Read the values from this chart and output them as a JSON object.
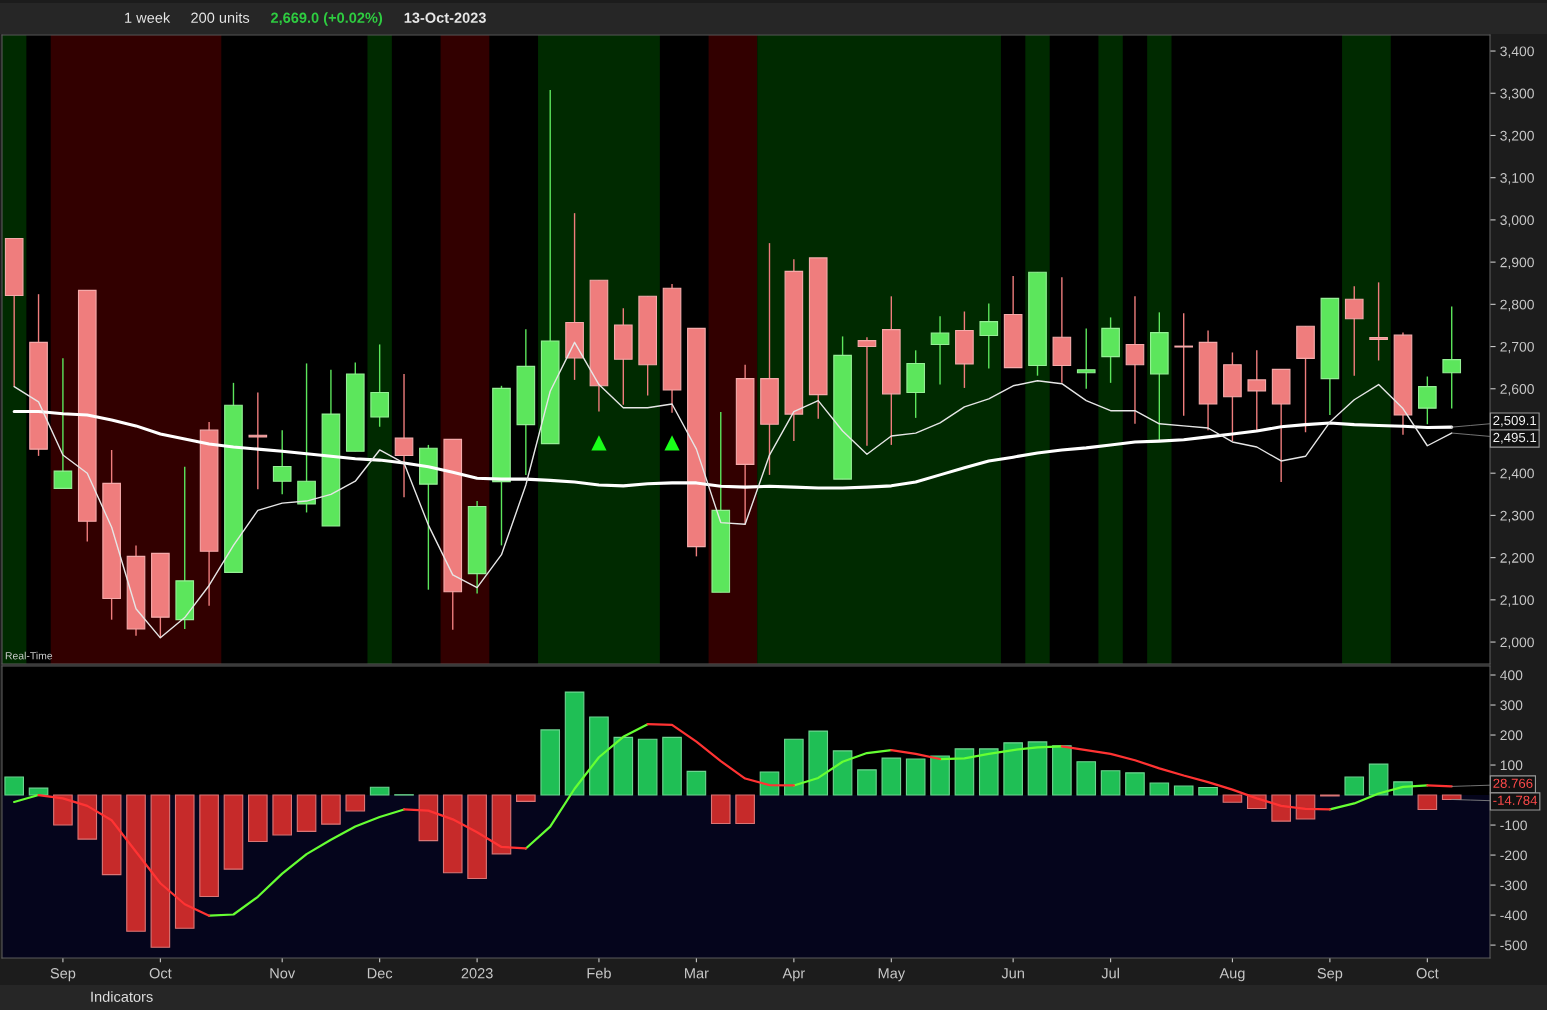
{
  "chart_data": [
    {
      "type": "candlestick",
      "title": "2,669.0 (+0.02%)",
      "subtitle": "13-Oct-2023",
      "x": [
        "2022-08-22",
        "2022-08-29",
        "2022-09-05",
        "2022-09-12",
        "2022-09-19",
        "2022-09-26",
        "2022-10-03",
        "2022-10-10",
        "2022-10-17",
        "2022-10-24",
        "2022-10-31",
        "2022-11-07",
        "2022-11-14",
        "2022-11-21",
        "2022-11-28",
        "2022-12-05",
        "2022-12-12",
        "2022-12-19",
        "2022-12-26",
        "2023-01-02",
        "2023-01-09",
        "2023-01-16",
        "2023-01-23",
        "2023-01-30",
        "2023-02-06",
        "2023-02-13",
        "2023-02-20",
        "2023-02-27",
        "2023-03-06",
        "2023-03-13",
        "2023-03-20",
        "2023-03-27",
        "2023-04-03",
        "2023-04-10",
        "2023-04-17",
        "2023-04-24",
        "2023-05-01",
        "2023-05-08",
        "2023-05-15",
        "2023-05-22",
        "2023-05-29",
        "2023-06-05",
        "2023-06-12",
        "2023-06-19",
        "2023-06-26",
        "2023-07-03",
        "2023-07-10",
        "2023-07-17",
        "2023-07-24",
        "2023-07-31",
        "2023-08-07",
        "2023-08-14",
        "2023-08-21",
        "2023-08-28",
        "2023-09-04",
        "2023-09-11",
        "2023-09-18",
        "2023-09-25",
        "2023-10-02",
        "2023-10-09"
      ],
      "ohlc": [
        [
          2956,
          2956,
          2605,
          2821
        ],
        [
          2710,
          2824,
          2441,
          2457
        ],
        [
          2364,
          2672,
          2364,
          2405
        ],
        [
          2833,
          2833,
          2238,
          2286
        ],
        [
          2376,
          2455,
          2053,
          2103
        ],
        [
          2203,
          2229,
          2015,
          2031
        ],
        [
          2210,
          2210,
          2010,
          2059
        ],
        [
          2053,
          2415,
          2031,
          2145
        ],
        [
          2502,
          2521,
          2086,
          2215
        ],
        [
          2165,
          2614,
          2165,
          2561
        ],
        [
          2490,
          2591,
          2362,
          2486
        ],
        [
          2381,
          2502,
          2350,
          2416
        ],
        [
          2327,
          2660,
          2307,
          2381
        ],
        [
          2275,
          2645,
          2275,
          2540
        ],
        [
          2452,
          2662,
          2452,
          2635
        ],
        [
          2533,
          2705,
          2510,
          2591
        ],
        [
          2483,
          2635,
          2343,
          2442
        ],
        [
          2374,
          2467,
          2124,
          2459
        ],
        [
          2480,
          2480,
          2029,
          2119
        ],
        [
          2162,
          2334,
          2115,
          2321
        ],
        [
          2380,
          2607,
          2229,
          2601
        ],
        [
          2515,
          2741,
          2396,
          2653
        ],
        [
          2470,
          3308,
          2470,
          2713
        ],
        [
          2757,
          3016,
          2621,
          2673
        ],
        [
          2857,
          2857,
          2546,
          2607
        ],
        [
          2751,
          2791,
          2562,
          2670
        ],
        [
          2819,
          2819,
          2584,
          2657
        ],
        [
          2838,
          2848,
          2543,
          2597
        ],
        [
          2743,
          2743,
          2203,
          2226
        ],
        [
          2118,
          2545,
          2118,
          2312
        ],
        [
          2624,
          2657,
          2278,
          2421
        ],
        [
          2624,
          2945,
          2396,
          2516
        ],
        [
          2878,
          2907,
          2476,
          2540
        ],
        [
          2910,
          2910,
          2529,
          2586
        ],
        [
          2386,
          2724,
          2386,
          2679
        ],
        [
          2714,
          2722,
          2465,
          2700
        ],
        [
          2740,
          2819,
          2467,
          2588
        ],
        [
          2591,
          2691,
          2531,
          2660
        ],
        [
          2705,
          2772,
          2610,
          2732
        ],
        [
          2738,
          2783,
          2602,
          2659
        ],
        [
          2726,
          2802,
          2648,
          2759
        ],
        [
          2776,
          2867,
          2650,
          2650
        ],
        [
          2655,
          2876,
          2631,
          2876
        ],
        [
          2722,
          2864,
          2614,
          2655
        ],
        [
          2638,
          2743,
          2600,
          2645
        ],
        [
          2676,
          2769,
          2614,
          2743
        ],
        [
          2705,
          2819,
          2517,
          2657
        ],
        [
          2635,
          2781,
          2476,
          2733
        ],
        [
          2701,
          2779,
          2536,
          2699
        ],
        [
          2710,
          2738,
          2502,
          2564
        ],
        [
          2657,
          2686,
          2476,
          2581
        ],
        [
          2621,
          2691,
          2502,
          2595
        ],
        [
          2646,
          2646,
          2379,
          2564
        ],
        [
          2748,
          2748,
          2497,
          2672
        ],
        [
          2624,
          2814,
          2538,
          2814
        ],
        [
          2812,
          2843,
          2631,
          2766
        ],
        [
          2721,
          2852,
          2667,
          2717
        ],
        [
          2727,
          2733,
          2491,
          2538
        ],
        [
          2554,
          2629,
          2516,
          2605
        ],
        [
          2638,
          2795,
          2553,
          2669
        ]
      ],
      "colors": [
        "#ef7d7d",
        "#ef7d7d",
        "#5ce65c",
        "#ef7d7d",
        "#ef7d7d",
        "#ef7d7d",
        "#ef7d7d",
        "#5ce65c",
        "#ef7d7d",
        "#5ce65c",
        "#ef7d7d",
        "#5ce65c",
        "#5ce65c",
        "#5ce65c",
        "#5ce65c",
        "#5ce65c",
        "#ef7d7d",
        "#5ce65c",
        "#ef7d7d",
        "#5ce65c",
        "#5ce65c",
        "#5ce65c",
        "#5ce65c",
        "#ef7d7d",
        "#ef7d7d",
        "#ef7d7d",
        "#ef7d7d",
        "#ef7d7d",
        "#ef7d7d",
        "#5ce65c",
        "#ef7d7d",
        "#ef7d7d",
        "#ef7d7d",
        "#ef7d7d",
        "#5ce65c",
        "#ef7d7d",
        "#ef7d7d",
        "#5ce65c",
        "#5ce65c",
        "#ef7d7d",
        "#5ce65c",
        "#ef7d7d",
        "#5ce65c",
        "#ef7d7d",
        "#5ce65c",
        "#5ce65c",
        "#ef7d7d",
        "#5ce65c",
        "#ef7d7d",
        "#ef7d7d",
        "#ef7d7d",
        "#ef7d7d",
        "#ef7d7d",
        "#ef7d7d",
        "#5ce65c",
        "#ef7d7d",
        "#ef7d7d",
        "#ef7d7d",
        "#5ce65c",
        "#5ce65c"
      ],
      "series": [
        {
          "type": "line",
          "color": "#ffffff",
          "values": [
            2546,
            2546,
            2541,
            2538,
            2526,
            2512,
            2493,
            2481,
            2469,
            2462,
            2457,
            2452,
            2446,
            2440,
            2434,
            2431,
            2424,
            2415,
            2402,
            2388,
            2386,
            2386,
            2383,
            2379,
            2372,
            2370,
            2375,
            2377,
            2377,
            2369,
            2367,
            2369,
            2367,
            2365,
            2365,
            2367,
            2370,
            2379,
            2396,
            2413,
            2429,
            2438,
            2448,
            2455,
            2460,
            2467,
            2474,
            2476,
            2479,
            2486,
            2493,
            2500,
            2510,
            2515,
            2519,
            2515,
            2513,
            2511,
            2508,
            2509.1
          ]
        },
        {
          "type": "line",
          "color": "#e6e6e6",
          "values": [
            2605,
            2569,
            2443,
            2400,
            2272,
            2079,
            2010,
            2058,
            2134,
            2229,
            2312,
            2329,
            2334,
            2350,
            2381,
            2455,
            2424,
            2277,
            2159,
            2129,
            2207,
            2372,
            2594,
            2710,
            2610,
            2555,
            2555,
            2564,
            2457,
            2283,
            2279,
            2443,
            2546,
            2572,
            2500,
            2445,
            2488,
            2495,
            2519,
            2557,
            2576,
            2607,
            2619,
            2612,
            2572,
            2548,
            2548,
            2517,
            2512,
            2507,
            2474,
            2462,
            2429,
            2440,
            2521,
            2574,
            2610,
            2553,
            2465,
            2495.1
          ]
        },
        {
          "type": "scatter",
          "marker": "triangle",
          "color": "#19ff19",
          "x": [
            "2023-02-06",
            "2023-02-27"
          ],
          "values": [
            2472,
            2472
          ]
        }
      ],
      "bands": [
        {
          "axis": "x",
          "from": "2022-08-18T12:00",
          "to": "2022-08-25T12:00",
          "color": "#002a00"
        },
        {
          "axis": "x",
          "from": "2022-09-01T12:00",
          "to": "2022-10-20T12:00",
          "color": "#320000"
        },
        {
          "axis": "x",
          "from": "2022-12-01T12:00",
          "to": "2022-12-08T12:00",
          "color": "#002a00"
        },
        {
          "axis": "x",
          "from": "2022-12-22T12:00",
          "to": "2023-01-05T12:00",
          "color": "#320000"
        },
        {
          "axis": "x",
          "from": "2023-01-19T12:00",
          "to": "2023-02-23T12:00",
          "color": "#002a00"
        },
        {
          "axis": "x",
          "from": "2023-03-09T12:00",
          "to": "2023-03-23T12:00",
          "color": "#320000"
        },
        {
          "axis": "x",
          "from": "2023-03-23T12:00",
          "to": "2023-06-01T12:00",
          "color": "#002a00"
        },
        {
          "axis": "x",
          "from": "2023-06-08T12:00",
          "to": "2023-06-15T12:00",
          "color": "#002a00"
        },
        {
          "axis": "x",
          "from": "2023-06-29T12:00",
          "to": "2023-07-06T12:00",
          "color": "#002a00"
        },
        {
          "axis": "x",
          "from": "2023-07-13T12:00",
          "to": "2023-07-20T12:00",
          "color": "#002a00"
        },
        {
          "axis": "x",
          "from": "2023-09-07T12:00",
          "to": "2023-09-21T12:00",
          "color": "#002a00"
        }
      ],
      "xlim": [
        "2022-08-18T12:00",
        "2023-10-20"
      ],
      "ylim": [
        1948,
        3438
      ],
      "yticks": [
        {
          "value": 2000,
          "label": "2,000"
        },
        {
          "value": 2100,
          "label": "2,100"
        },
        {
          "value": 2200,
          "label": "2,200"
        },
        {
          "value": 2300,
          "label": "2,300"
        },
        {
          "value": 2400,
          "label": "2,400"
        },
        {
          "value": 2600,
          "label": "2,600"
        },
        {
          "value": 2700,
          "label": "2,700"
        },
        {
          "value": 2800,
          "label": "2,800"
        },
        {
          "value": 2900,
          "label": "2,900"
        },
        {
          "value": 3000,
          "label": "3,000"
        },
        {
          "value": 3100,
          "label": "3,100"
        },
        {
          "value": 3200,
          "label": "3,200"
        },
        {
          "value": 3300,
          "label": "3,300"
        },
        {
          "value": 3400,
          "label": "3,400"
        }
      ],
      "tick_labels": "y",
      "annotations": [
        "1 week",
        "200 units",
        "Real-Time",
        {
          "text": "2,509.1",
          "x": "2023-10-09",
          "y": 2509.1
        },
        {
          "text": "2,495.1",
          "x": "2023-10-09",
          "y": 2495.1
        }
      ]
    },
    {
      "type": "bar",
      "x": [
        "2022-08-22",
        "2022-08-29",
        "2022-09-05",
        "2022-09-12",
        "2022-09-19",
        "2022-09-26",
        "2022-10-03",
        "2022-10-10",
        "2022-10-17",
        "2022-10-24",
        "2022-10-31",
        "2022-11-07",
        "2022-11-14",
        "2022-11-21",
        "2022-11-28",
        "2022-12-05",
        "2022-12-12",
        "2022-12-19",
        "2022-12-26",
        "2023-01-02",
        "2023-01-09",
        "2023-01-16",
        "2023-01-23",
        "2023-01-30",
        "2023-02-06",
        "2023-02-13",
        "2023-02-20",
        "2023-02-27",
        "2023-03-06",
        "2023-03-13",
        "2023-03-20",
        "2023-03-27",
        "2023-04-03",
        "2023-04-10",
        "2023-04-17",
        "2023-04-24",
        "2023-05-01",
        "2023-05-08",
        "2023-05-15",
        "2023-05-22",
        "2023-05-29",
        "2023-06-05",
        "2023-06-12",
        "2023-06-19",
        "2023-06-26",
        "2023-07-03",
        "2023-07-10",
        "2023-07-17",
        "2023-07-24",
        "2023-07-31",
        "2023-08-07",
        "2023-08-14",
        "2023-08-21",
        "2023-08-28",
        "2023-09-04",
        "2023-09-11",
        "2023-09-18",
        "2023-09-25",
        "2023-10-02",
        "2023-10-09"
      ],
      "values": [
        60,
        23,
        -100,
        -147,
        -265,
        -454,
        -507,
        -444,
        -338,
        -247,
        -155,
        -133,
        -121,
        -97,
        -53,
        26,
        1,
        -152,
        -259,
        -278,
        -196,
        -21,
        217,
        343,
        260,
        192,
        186,
        192,
        79,
        -95,
        -95,
        77,
        186,
        213,
        147,
        84,
        123,
        120,
        130,
        154,
        154,
        174,
        177,
        164,
        111,
        81,
        74,
        40,
        30,
        25,
        -24,
        -45,
        -87,
        -80,
        -3,
        60,
        103,
        44,
        -48,
        -14.784
      ],
      "colors": [
        "#1fbf55",
        "#1fbf55",
        "#c62a2a",
        "#c62a2a",
        "#c62a2a",
        "#c62a2a",
        "#c62a2a",
        "#c62a2a",
        "#c62a2a",
        "#c62a2a",
        "#c62a2a",
        "#c62a2a",
        "#c62a2a",
        "#c62a2a",
        "#c62a2a",
        "#1fbf55",
        "#1fbf55",
        "#c62a2a",
        "#c62a2a",
        "#c62a2a",
        "#c62a2a",
        "#c62a2a",
        "#1fbf55",
        "#1fbf55",
        "#1fbf55",
        "#1fbf55",
        "#1fbf55",
        "#1fbf55",
        "#1fbf55",
        "#c62a2a",
        "#c62a2a",
        "#1fbf55",
        "#1fbf55",
        "#1fbf55",
        "#1fbf55",
        "#1fbf55",
        "#1fbf55",
        "#1fbf55",
        "#1fbf55",
        "#1fbf55",
        "#1fbf55",
        "#1fbf55",
        "#1fbf55",
        "#1fbf55",
        "#1fbf55",
        "#1fbf55",
        "#1fbf55",
        "#1fbf55",
        "#1fbf55",
        "#1fbf55",
        "#c62a2a",
        "#c62a2a",
        "#c62a2a",
        "#c62a2a",
        "#c62a2a",
        "#1fbf55",
        "#1fbf55",
        "#1fbf55",
        "#c62a2a",
        "#c62a2a"
      ],
      "series": [
        {
          "type": "line",
          "color": "#66ff33",
          "values": [
            -23,
            0,
            null,
            null,
            null,
            null,
            null,
            null,
            -402,
            -398,
            -339,
            -262,
            -197,
            -149,
            -105,
            -73,
            -48,
            null,
            null,
            null,
            null,
            -178,
            -105,
            21,
            126,
            194,
            236,
            null,
            null,
            null,
            null,
            null,
            32,
            57,
            111,
            140,
            150,
            null,
            120,
            122,
            137,
            150,
            159,
            162,
            null,
            null,
            null,
            null,
            null,
            null,
            null,
            null,
            null,
            null,
            -48,
            -28,
            5,
            27,
            32,
            null
          ]
        },
        {
          "type": "line",
          "color": "#ff3333",
          "values": [
            null,
            0,
            -11,
            -36,
            -84,
            -189,
            -294,
            -364,
            -402,
            null,
            null,
            null,
            null,
            null,
            null,
            null,
            -48,
            -52,
            -81,
            -124,
            -173,
            -178,
            null,
            null,
            null,
            null,
            236,
            234,
            178,
            113,
            55,
            33,
            32,
            null,
            null,
            null,
            150,
            137,
            120,
            null,
            null,
            null,
            null,
            162,
            150,
            137,
            116,
            89,
            65,
            43,
            18,
            -11,
            -36,
            -46,
            -48,
            null,
            null,
            null,
            32,
            28.766
          ]
        }
      ],
      "bands": [
        {
          "axis": "y",
          "from": -543,
          "to": 0,
          "color": "#05051c"
        }
      ],
      "xlim": [
        "2022-08-18T12:00",
        "2023-10-20"
      ],
      "xticks": [
        {
          "value": "2022-09-05",
          "label": "Sep"
        },
        {
          "value": "2022-10-03",
          "label": "Oct"
        },
        {
          "value": "2022-11-07",
          "label": "Nov"
        },
        {
          "value": "2022-12-05",
          "label": "Dec"
        },
        {
          "value": "2023-01-02",
          "label": "2023"
        },
        {
          "value": "2023-02-06",
          "label": "Feb"
        },
        {
          "value": "2023-03-06",
          "label": "Mar"
        },
        {
          "value": "2023-04-03",
          "label": "Apr"
        },
        {
          "value": "2023-05-01",
          "label": "May"
        },
        {
          "value": "2023-06-05",
          "label": "Jun"
        },
        {
          "value": "2023-07-03",
          "label": "Jul"
        },
        {
          "value": "2023-08-07",
          "label": "Aug"
        },
        {
          "value": "2023-09-04",
          "label": "Sep"
        },
        {
          "value": "2023-10-02",
          "label": "Oct"
        }
      ],
      "ylim": [
        -543,
        430
      ],
      "yticks": [
        400,
        300,
        200,
        100,
        -100,
        -200,
        -300,
        -400,
        -500
      ],
      "annotations": [
        "Indicators",
        {
          "text": "28.766",
          "x": "2023-10-09",
          "y": 28.766
        },
        {
          "text": "-14.784",
          "x": "2023-10-09",
          "y": -14.784
        }
      ]
    }
  ]
}
